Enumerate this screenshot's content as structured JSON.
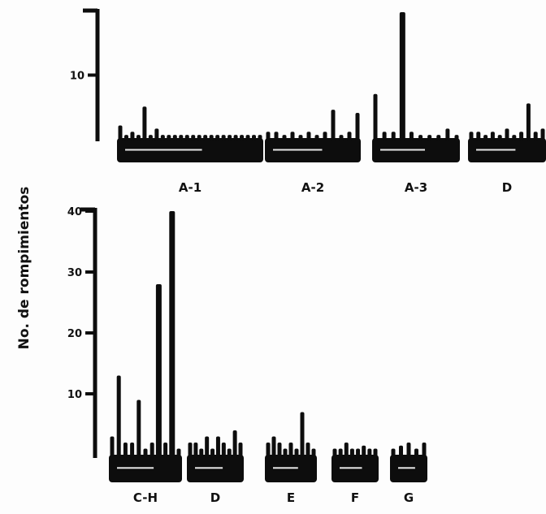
{
  "chart_data": [
    {
      "type": "bar",
      "panel": "top",
      "ylabel": "No. de rompimientos",
      "yticks": [
        10
      ],
      "ylim": [
        0,
        20
      ],
      "groups": [
        {
          "label": "A-1",
          "values": [
            2,
            0.5,
            1,
            0.5,
            5,
            0.5,
            1.5,
            0.5,
            0.5,
            0.5,
            0.5,
            0.5,
            0.5,
            0.5,
            0.5,
            0.5,
            0.5,
            0.5,
            0.5,
            0.5,
            0.5,
            0.5,
            0.5,
            0.5
          ]
        },
        {
          "label": "A-2",
          "values": [
            1,
            1,
            0.5,
            1,
            0.5,
            1,
            0.5,
            1,
            4.5,
            0.5,
            1,
            4
          ]
        },
        {
          "label": "A-3",
          "values": [
            7,
            1,
            1,
            20,
            1,
            0.5,
            0.5,
            0.5,
            1.5,
            0.5
          ]
        },
        {
          "label": "D",
          "values": [
            1,
            1,
            0.5,
            1,
            0.5,
            1.5,
            0.5,
            1,
            5.5,
            1,
            1.5
          ]
        }
      ]
    },
    {
      "type": "bar",
      "panel": "bottom",
      "ylabel": "No. de rompimientos",
      "yticks": [
        10,
        20,
        30,
        40
      ],
      "ylim": [
        0,
        40
      ],
      "groups": [
        {
          "label": "C-H",
          "values": [
            3,
            13,
            2,
            2,
            9,
            1,
            2,
            28,
            2,
            40,
            1
          ]
        },
        {
          "label": "D",
          "values": [
            2,
            2,
            1,
            3,
            1,
            3,
            2,
            1,
            4,
            2
          ]
        },
        {
          "label": "E",
          "values": [
            2,
            3,
            2,
            1,
            2,
            1,
            7,
            2,
            1
          ]
        },
        {
          "label": "F",
          "values": [
            1,
            1,
            2,
            1,
            1,
            1.5,
            1,
            1
          ]
        },
        {
          "label": "G",
          "values": [
            1,
            1.5,
            2,
            1,
            2
          ]
        }
      ]
    }
  ]
}
